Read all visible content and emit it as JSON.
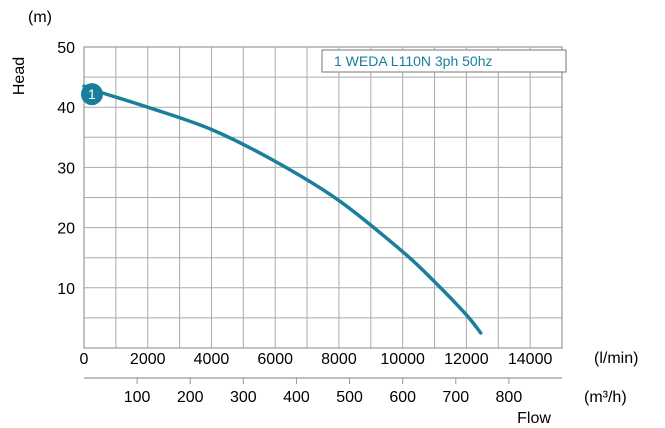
{
  "chart_data": {
    "type": "line",
    "title": "",
    "ylabel": "Head",
    "yunit": "(m)",
    "xlabel": "Flow",
    "x_unit_primary": "(l/min)",
    "x_unit_secondary": "(m³/h)",
    "xlim": [
      0,
      15000
    ],
    "ylim": [
      0,
      50
    ],
    "grid": true,
    "y_ticks": [
      10,
      20,
      30,
      40,
      50
    ],
    "x_ticks_primary": [
      0,
      2000,
      4000,
      6000,
      8000,
      10000,
      12000,
      14000
    ],
    "x_ticks_secondary": [
      100,
      200,
      300,
      400,
      500,
      600,
      700,
      800
    ],
    "legend_position": "top-right",
    "series": [
      {
        "name": "1 WEDA L110N 3ph 50hz",
        "marker_label": "1",
        "color": "#1a7f9c",
        "x": [
          0,
          500,
          2000,
          4000,
          6000,
          8000,
          10000,
          11000,
          12000,
          12450
        ],
        "y": [
          43.5,
          42.5,
          40,
          36.3,
          31,
          24.5,
          16,
          11,
          5.5,
          2.5
        ]
      }
    ]
  }
}
